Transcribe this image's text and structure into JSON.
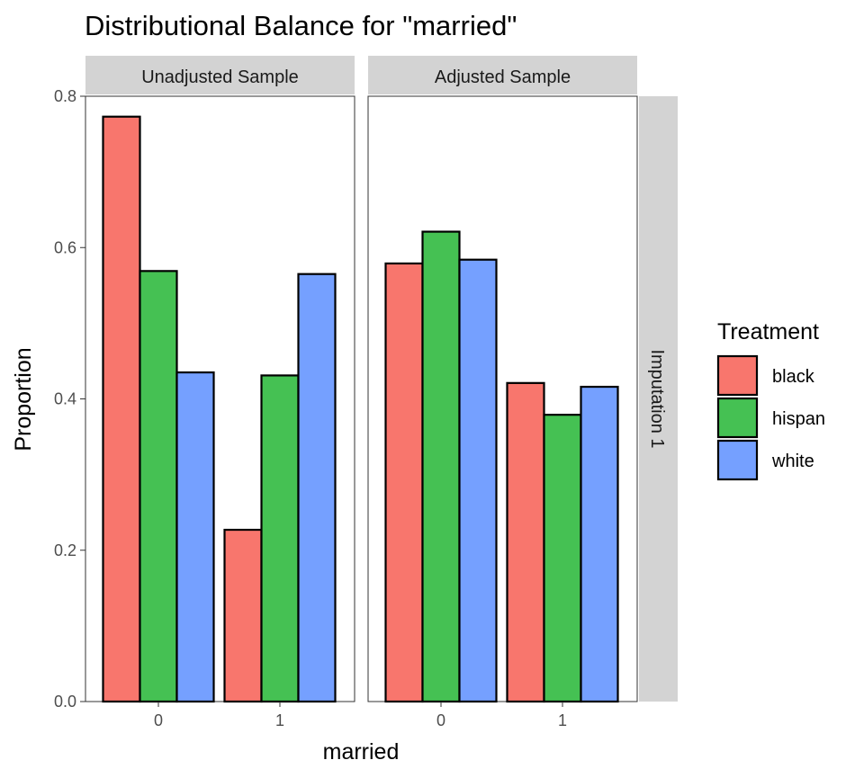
{
  "chart_data": {
    "type": "bar",
    "title": "Distributional Balance for \"married\"",
    "xlabel": "married",
    "ylabel": "Proportion",
    "ylim": [
      0,
      0.8
    ],
    "yticks": [
      "0.0",
      "0.2",
      "0.4",
      "0.6",
      "0.8"
    ],
    "categories": [
      "0",
      "1"
    ],
    "row_strip": "Imputation 1",
    "legend": {
      "title": "Treatment",
      "position": "right",
      "entries": [
        "black",
        "hispan",
        "white"
      ]
    },
    "colors": {
      "black": "#F8766D",
      "hispan": "#45C153",
      "white": "#75A0FF"
    },
    "grid": false,
    "panels": [
      {
        "label": "Unadjusted Sample",
        "series": [
          {
            "name": "black",
            "values": [
              0.773,
              0.227
            ]
          },
          {
            "name": "hispan",
            "values": [
              0.569,
              0.431
            ]
          },
          {
            "name": "white",
            "values": [
              0.435,
              0.565
            ]
          }
        ]
      },
      {
        "label": "Adjusted Sample",
        "series": [
          {
            "name": "black",
            "values": [
              0.579,
              0.421
            ]
          },
          {
            "name": "hispan",
            "values": [
              0.621,
              0.379
            ]
          },
          {
            "name": "white",
            "values": [
              0.584,
              0.416
            ]
          }
        ]
      }
    ]
  }
}
